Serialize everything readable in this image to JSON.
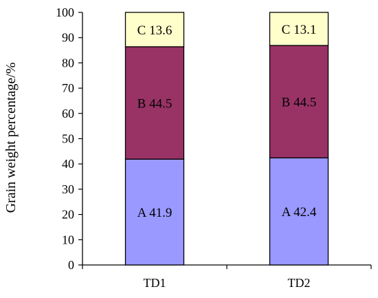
{
  "chart_data": {
    "type": "bar",
    "stacked": true,
    "ylabel": "Grain weight percentage/%",
    "ylim": [
      0,
      100
    ],
    "yticks": [
      "0",
      "10",
      "20",
      "30",
      "40",
      "50",
      "60",
      "70",
      "80",
      "90",
      "100"
    ],
    "grid": false,
    "categories": [
      "TD1",
      "TD2"
    ],
    "series": [
      {
        "values": [
          41.9,
          42.4
        ],
        "labels": [
          "A 41.9",
          "A 42.4"
        ],
        "color": "#9999FF"
      },
      {
        "values": [
          44.5,
          44.5
        ],
        "labels": [
          "B 44.5",
          "B 44.5"
        ],
        "color": "#993366"
      },
      {
        "values": [
          13.6,
          13.1
        ],
        "labels": [
          "C 13.6",
          "C 13.1"
        ],
        "color": "#FFFFCC"
      }
    ]
  }
}
